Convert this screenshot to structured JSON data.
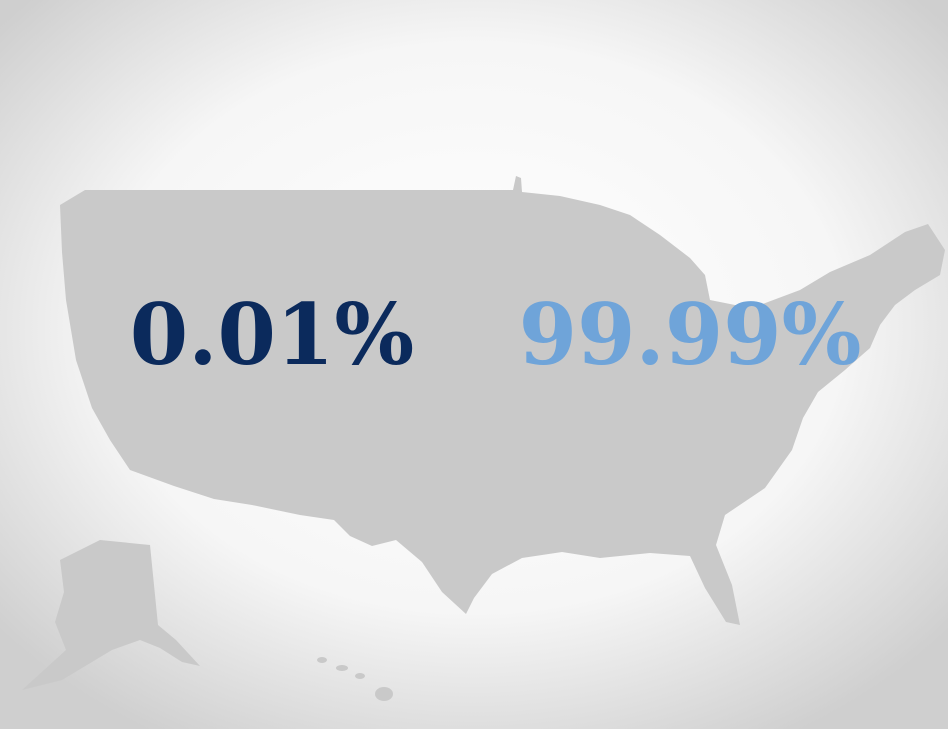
{
  "labels": {
    "left": "0.01%",
    "right": "99.99%"
  }
}
